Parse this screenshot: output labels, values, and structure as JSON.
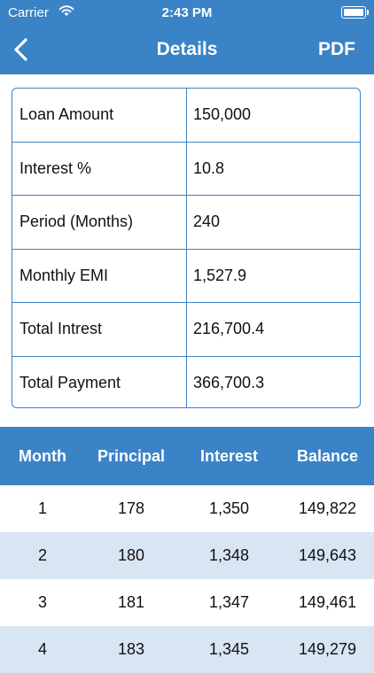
{
  "status_bar": {
    "carrier": "Carrier",
    "time": "2:43 PM"
  },
  "nav": {
    "title": "Details",
    "pdf_label": "PDF"
  },
  "summary": [
    {
      "label": "Loan Amount",
      "value": "150,000"
    },
    {
      "label": "Interest %",
      "value": "10.8"
    },
    {
      "label": "Period (Months)",
      "value": "240"
    },
    {
      "label": "Monthly EMI",
      "value": "1,527.9"
    },
    {
      "label": "Total Intrest",
      "value": "216,700.4"
    },
    {
      "label": "Total Payment",
      "value": "366,700.3"
    }
  ],
  "schedule": {
    "headers": [
      "Month",
      "Principal",
      "Interest",
      "Balance"
    ],
    "rows": [
      [
        "1",
        "178",
        "1,350",
        "149,822"
      ],
      [
        "2",
        "180",
        "1,348",
        "149,643"
      ],
      [
        "3",
        "181",
        "1,347",
        "149,461"
      ],
      [
        "4",
        "183",
        "1,345",
        "149,279"
      ]
    ]
  },
  "colors": {
    "accent": "#3a83c6",
    "alt_row": "#d8e5f2"
  },
  "icons": {
    "back": "chevron-left-icon",
    "wifi": "wifi-icon",
    "battery": "battery-icon"
  }
}
